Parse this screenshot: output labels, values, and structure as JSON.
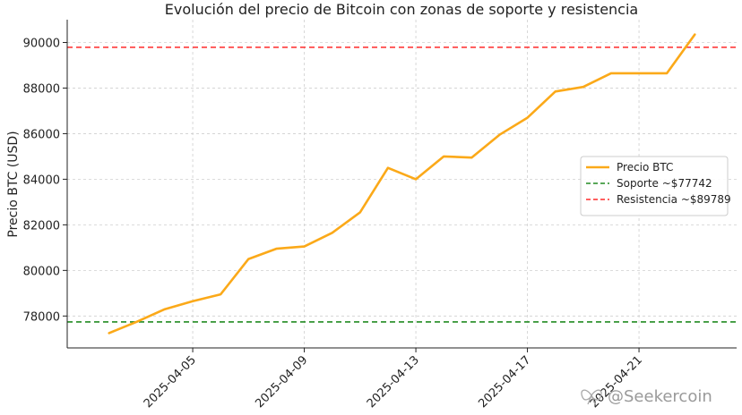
{
  "chart_data": {
    "type": "line",
    "title": "Evolución del precio de Bitcoin con zonas de soporte y resistencia",
    "xlabel": "",
    "ylabel": "Precio BTC (USD)",
    "x_ticks": [
      "2025-04-05",
      "2025-04-09",
      "2025-04-13",
      "2025-04-17",
      "2025-04-21"
    ],
    "y_ticks": [
      78000,
      80000,
      82000,
      84000,
      86000,
      88000,
      90000
    ],
    "xlim": [
      "2025-03-31T12:00",
      "2025-04-24T12:00"
    ],
    "ylim": [
      76600,
      91000
    ],
    "grid": true,
    "legend_position": "center-right",
    "series": [
      {
        "name": "Precio BTC",
        "color": "#FBA919",
        "x": [
          "2025-04-02",
          "2025-04-03",
          "2025-04-04",
          "2025-04-05",
          "2025-04-06",
          "2025-04-07",
          "2025-04-08",
          "2025-04-09",
          "2025-04-10",
          "2025-04-11",
          "2025-04-12",
          "2025-04-13",
          "2025-04-14",
          "2025-04-15",
          "2025-04-16",
          "2025-04-17",
          "2025-04-18",
          "2025-04-19",
          "2025-04-20",
          "2025-04-21",
          "2025-04-22",
          "2025-04-23"
        ],
        "y": [
          77250,
          77750,
          78300,
          78650,
          78950,
          80500,
          80950,
          81050,
          81650,
          82550,
          84500,
          84000,
          85000,
          84950,
          85950,
          86700,
          87850,
          88050,
          88650,
          88650,
          88650,
          90350
        ]
      }
    ],
    "hlines": [
      {
        "name": "Soporte ~$77742",
        "value": 77742,
        "color": "#228B22",
        "style": "dashed"
      },
      {
        "name": "Resistencia ~$89789",
        "value": 89789,
        "color": "#FF2A2A",
        "style": "dashed"
      }
    ]
  },
  "watermark": "@Seekercoin",
  "watermark_icon": "butterfly-logo-icon"
}
